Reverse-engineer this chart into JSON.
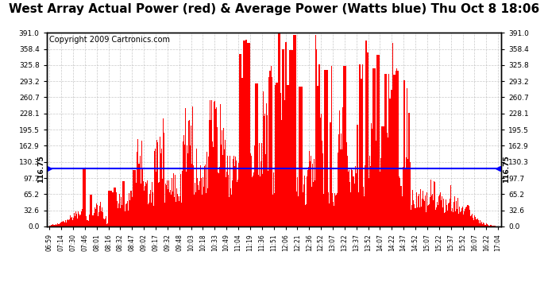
{
  "title": "West Array Actual Power (red) & Average Power (Watts blue) Thu Oct 8 18:06",
  "copyright": "Copyright 2009 Cartronics.com",
  "average_power": 116.75,
  "y_max": 391.0,
  "y_min": 0.0,
  "y_ticks": [
    0.0,
    32.6,
    65.2,
    97.7,
    130.3,
    162.9,
    195.5,
    228.1,
    260.7,
    293.2,
    325.8,
    358.4,
    391.0
  ],
  "x_labels": [
    "06:59",
    "07:14",
    "07:30",
    "07:46",
    "08:01",
    "08:16",
    "08:32",
    "08:47",
    "09:02",
    "09:17",
    "09:32",
    "09:48",
    "10:03",
    "10:18",
    "10:33",
    "10:49",
    "11:04",
    "11:19",
    "11:36",
    "11:51",
    "12:06",
    "12:21",
    "12:36",
    "12:52",
    "13:07",
    "13:22",
    "13:37",
    "13:52",
    "14:07",
    "14:22",
    "14:37",
    "14:52",
    "15:07",
    "15:22",
    "15:37",
    "15:52",
    "16:07",
    "16:22",
    "17:04"
  ],
  "bar_color": "#ff0000",
  "line_color": "#0000ff",
  "grid_color": "#bbbbbb",
  "bg_color": "#ffffff",
  "title_fontsize": 11,
  "copyright_fontsize": 7,
  "avg_label": "116.75",
  "fig_width": 6.9,
  "fig_height": 3.75,
  "dpi": 100
}
